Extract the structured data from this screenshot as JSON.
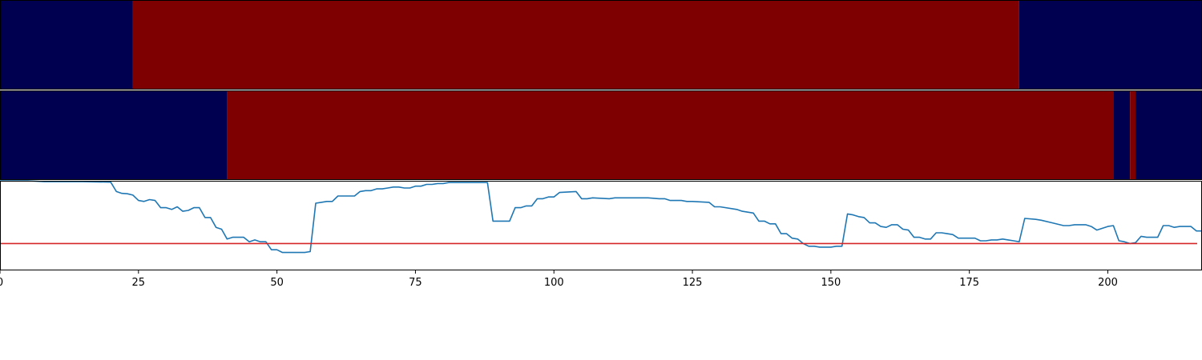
{
  "chart_data": {
    "type": "heatmap",
    "xlim": [
      0,
      217
    ],
    "x_ticks": [
      "0",
      "25",
      "50",
      "75",
      "100",
      "125",
      "150",
      "175",
      "200"
    ],
    "colors": {
      "low": "#000050",
      "high": "#7f0000",
      "line": "#1f77b4",
      "threshold": "#d62728"
    },
    "state_rows": [
      {
        "segments": [
          {
            "start": 0,
            "end": 24,
            "state": "low"
          },
          {
            "start": 24,
            "end": 184,
            "state": "high"
          },
          {
            "start": 184,
            "end": 217,
            "state": "low"
          }
        ]
      },
      {
        "segments": [
          {
            "start": 0,
            "end": 41,
            "state": "low"
          },
          {
            "start": 41,
            "end": 201,
            "state": "high"
          },
          {
            "start": 201,
            "end": 204,
            "state": "low"
          },
          {
            "start": 204,
            "end": 205,
            "state": "high"
          },
          {
            "start": 205,
            "end": 217,
            "state": "low"
          }
        ]
      }
    ],
    "line_series": {
      "ylim": [
        0,
        1
      ],
      "threshold": 0.3,
      "points": [
        [
          0,
          1.0
        ],
        [
          5,
          1.0
        ],
        [
          8,
          0.99
        ],
        [
          15,
          0.99
        ],
        [
          20,
          0.985
        ],
        [
          21,
          0.88
        ],
        [
          22,
          0.86
        ],
        [
          23,
          0.855
        ],
        [
          24,
          0.84
        ],
        [
          25,
          0.78
        ],
        [
          26,
          0.77
        ],
        [
          27,
          0.79
        ],
        [
          28,
          0.78
        ],
        [
          29,
          0.7
        ],
        [
          30,
          0.7
        ],
        [
          31,
          0.68
        ],
        [
          32,
          0.71
        ],
        [
          33,
          0.66
        ],
        [
          34,
          0.67
        ],
        [
          35,
          0.7
        ],
        [
          36,
          0.7
        ],
        [
          37,
          0.59
        ],
        [
          38,
          0.59
        ],
        [
          39,
          0.48
        ],
        [
          40,
          0.46
        ],
        [
          41,
          0.35
        ],
        [
          42,
          0.37
        ],
        [
          43,
          0.37
        ],
        [
          44,
          0.37
        ],
        [
          45,
          0.32
        ],
        [
          46,
          0.34
        ],
        [
          47,
          0.32
        ],
        [
          48,
          0.32
        ],
        [
          49,
          0.23
        ],
        [
          50,
          0.23
        ],
        [
          51,
          0.2
        ],
        [
          52,
          0.2
        ],
        [
          53,
          0.2
        ],
        [
          54,
          0.2
        ],
        [
          55,
          0.2
        ],
        [
          56,
          0.21
        ],
        [
          57,
          0.75
        ],
        [
          58,
          0.76
        ],
        [
          59,
          0.77
        ],
        [
          60,
          0.77
        ],
        [
          61,
          0.83
        ],
        [
          62,
          0.83
        ],
        [
          63,
          0.83
        ],
        [
          64,
          0.83
        ],
        [
          65,
          0.88
        ],
        [
          66,
          0.89
        ],
        [
          67,
          0.89
        ],
        [
          68,
          0.91
        ],
        [
          69,
          0.91
        ],
        [
          70,
          0.92
        ],
        [
          71,
          0.93
        ],
        [
          72,
          0.93
        ],
        [
          73,
          0.92
        ],
        [
          74,
          0.92
        ],
        [
          75,
          0.94
        ],
        [
          76,
          0.94
        ],
        [
          77,
          0.96
        ],
        [
          78,
          0.96
        ],
        [
          79,
          0.97
        ],
        [
          80,
          0.97
        ],
        [
          81,
          0.98
        ],
        [
          85,
          0.98
        ],
        [
          88,
          0.98
        ],
        [
          89,
          0.55
        ],
        [
          90,
          0.55
        ],
        [
          91,
          0.55
        ],
        [
          92,
          0.55
        ],
        [
          93,
          0.7
        ],
        [
          94,
          0.7
        ],
        [
          95,
          0.72
        ],
        [
          96,
          0.72
        ],
        [
          97,
          0.8
        ],
        [
          98,
          0.8
        ],
        [
          99,
          0.82
        ],
        [
          100,
          0.82
        ],
        [
          101,
          0.87
        ],
        [
          104,
          0.88
        ],
        [
          105,
          0.8
        ],
        [
          106,
          0.8
        ],
        [
          107,
          0.81
        ],
        [
          110,
          0.8
        ],
        [
          111,
          0.81
        ],
        [
          112,
          0.81
        ],
        [
          114,
          0.81
        ],
        [
          115,
          0.81
        ],
        [
          117,
          0.81
        ],
        [
          119,
          0.8
        ],
        [
          120,
          0.8
        ],
        [
          121,
          0.78
        ],
        [
          123,
          0.78
        ],
        [
          124,
          0.77
        ],
        [
          125,
          0.77
        ],
        [
          128,
          0.76
        ],
        [
          129,
          0.71
        ],
        [
          130,
          0.71
        ],
        [
          133,
          0.68
        ],
        [
          134,
          0.66
        ],
        [
          135,
          0.65
        ],
        [
          136,
          0.64
        ],
        [
          137,
          0.55
        ],
        [
          138,
          0.55
        ],
        [
          139,
          0.52
        ],
        [
          140,
          0.52
        ],
        [
          141,
          0.41
        ],
        [
          142,
          0.41
        ],
        [
          143,
          0.36
        ],
        [
          144,
          0.35
        ],
        [
          145,
          0.3
        ],
        [
          146,
          0.27
        ],
        [
          147,
          0.27
        ],
        [
          148,
          0.26
        ],
        [
          149,
          0.26
        ],
        [
          150,
          0.26
        ],
        [
          151,
          0.27
        ],
        [
          152,
          0.27
        ],
        [
          153,
          0.63
        ],
        [
          154,
          0.62
        ],
        [
          155,
          0.6
        ],
        [
          156,
          0.59
        ],
        [
          157,
          0.53
        ],
        [
          158,
          0.53
        ],
        [
          159,
          0.49
        ],
        [
          160,
          0.48
        ],
        [
          161,
          0.51
        ],
        [
          162,
          0.51
        ],
        [
          163,
          0.46
        ],
        [
          164,
          0.45
        ],
        [
          165,
          0.37
        ],
        [
          166,
          0.37
        ],
        [
          167,
          0.35
        ],
        [
          168,
          0.35
        ],
        [
          169,
          0.42
        ],
        [
          170,
          0.42
        ],
        [
          171,
          0.41
        ],
        [
          172,
          0.4
        ],
        [
          173,
          0.36
        ],
        [
          175,
          0.36
        ],
        [
          176,
          0.36
        ],
        [
          177,
          0.33
        ],
        [
          178,
          0.33
        ],
        [
          179,
          0.34
        ],
        [
          180,
          0.34
        ],
        [
          181,
          0.35
        ],
        [
          182,
          0.34
        ],
        [
          183,
          0.33
        ],
        [
          184,
          0.32
        ],
        [
          185,
          0.58
        ],
        [
          187,
          0.57
        ],
        [
          188,
          0.56
        ],
        [
          190,
          0.53
        ],
        [
          192,
          0.5
        ],
        [
          193,
          0.5
        ],
        [
          194,
          0.51
        ],
        [
          196,
          0.51
        ],
        [
          197,
          0.49
        ],
        [
          198,
          0.45
        ],
        [
          199,
          0.47
        ],
        [
          200,
          0.49
        ],
        [
          201,
          0.5
        ],
        [
          202,
          0.33
        ],
        [
          203,
          0.32
        ],
        [
          204,
          0.3
        ],
        [
          205,
          0.31
        ],
        [
          206,
          0.38
        ],
        [
          207,
          0.37
        ],
        [
          208,
          0.37
        ],
        [
          209,
          0.37
        ],
        [
          210,
          0.5
        ],
        [
          211,
          0.5
        ],
        [
          212,
          0.48
        ],
        [
          213,
          0.49
        ],
        [
          214,
          0.49
        ],
        [
          215,
          0.49
        ],
        [
          216,
          0.44
        ],
        [
          217,
          0.44
        ]
      ]
    }
  }
}
